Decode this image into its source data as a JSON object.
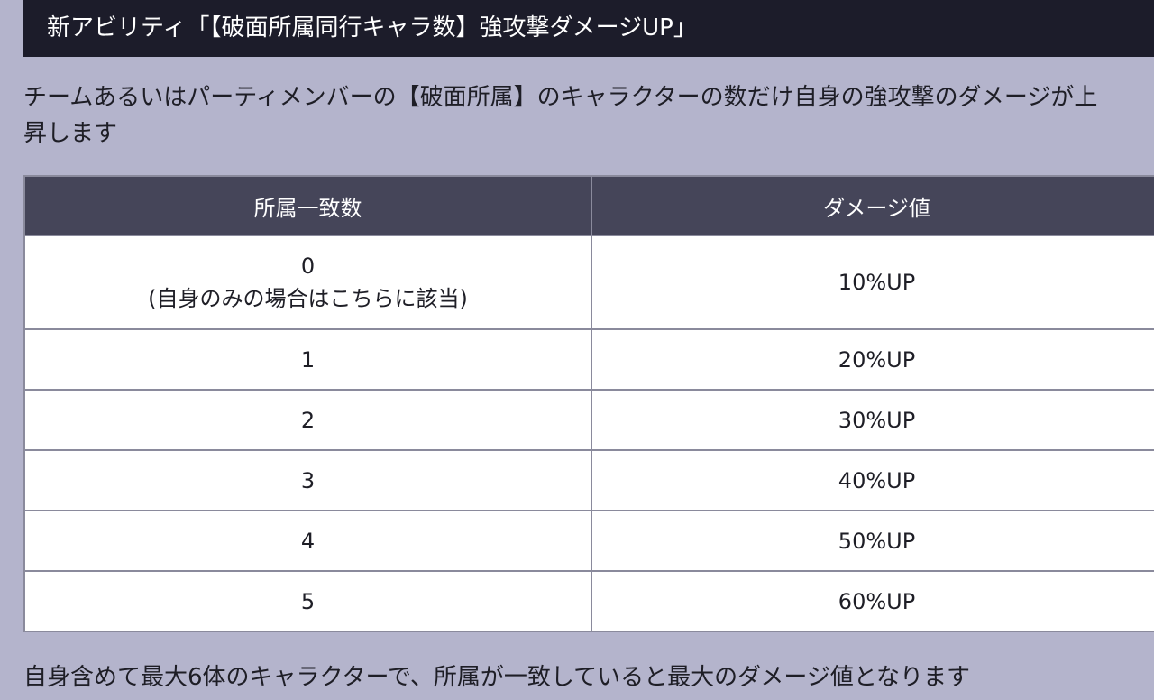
{
  "header": {
    "title": "新アビリティ「【破面所属同行キャラ数】強攻撃ダメージUP」"
  },
  "description": {
    "line1": "チームあるいはパーティメンバーの【破面所属】のキャラクターの数だけ自身の強攻撃のダメージが上",
    "line2": "昇します"
  },
  "table": {
    "headers": [
      "所属一致数",
      "ダメージ値"
    ],
    "rows": [
      {
        "count": "0",
        "note": "(自身のみの場合はこちらに該当)",
        "damage": "10%UP"
      },
      {
        "count": "1",
        "damage": "20%UP"
      },
      {
        "count": "2",
        "damage": "30%UP"
      },
      {
        "count": "3",
        "damage": "40%UP"
      },
      {
        "count": "4",
        "damage": "50%UP"
      },
      {
        "count": "5",
        "damage": "60%UP"
      }
    ]
  },
  "footer": {
    "text": "自身含めて最大6体のキャラクターで、所属が一致していると最大のダメージ値となります"
  },
  "colors": {
    "background": "#b4b4cc",
    "header_bg": "#1c1c2a",
    "table_header_bg": "#454559"
  }
}
